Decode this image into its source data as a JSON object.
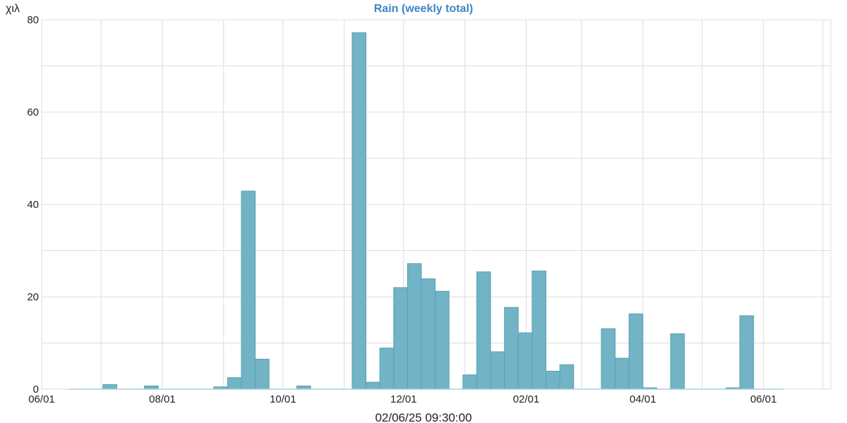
{
  "chart_data": {
    "type": "bar",
    "title": "Rain (weekly total)",
    "ylabel": "χιλ",
    "footer": "02/06/25 09:30:00",
    "ylim": [
      0,
      80
    ],
    "y_ticks": [
      0,
      20,
      40,
      60,
      80
    ],
    "x_tick_labels": [
      "06/01",
      "08/01",
      "10/01",
      "12/01",
      "02/01",
      "04/01",
      "06/01"
    ],
    "x_tick_dates": [
      "2024-06-01",
      "2024-08-01",
      "2024-10-01",
      "2024-12-01",
      "2025-02-01",
      "2025-04-01",
      "2025-06-01"
    ],
    "x_range": [
      "2024-06-01",
      "2025-07-05"
    ],
    "grid": true,
    "bar_color": "#72b3c6",
    "title_color": "#3d85c6",
    "week_start": [
      "2024-06-18",
      "2024-06-25",
      "2024-07-02",
      "2024-07-09",
      "2024-07-16",
      "2024-07-23",
      "2024-07-30",
      "2024-08-06",
      "2024-08-13",
      "2024-08-20",
      "2024-08-27",
      "2024-09-03",
      "2024-09-10",
      "2024-09-17",
      "2024-09-24",
      "2024-10-01",
      "2024-10-08",
      "2024-10-15",
      "2024-10-22",
      "2024-10-29",
      "2024-11-05",
      "2024-11-12",
      "2024-11-19",
      "2024-11-26",
      "2024-12-03",
      "2024-12-10",
      "2024-12-17",
      "2024-12-24",
      "2024-12-31",
      "2025-01-07",
      "2025-01-14",
      "2025-01-21",
      "2025-01-28",
      "2025-02-04",
      "2025-02-11",
      "2025-02-18",
      "2025-02-25",
      "2025-03-04",
      "2025-03-11",
      "2025-03-18",
      "2025-03-25",
      "2025-04-01",
      "2025-04-08",
      "2025-04-15",
      "2025-04-22",
      "2025-04-29",
      "2025-05-06",
      "2025-05-13",
      "2025-05-20",
      "2025-05-27",
      "2025-06-03"
    ],
    "values": [
      0,
      0,
      1.0,
      0,
      0,
      0.7,
      0,
      0,
      0,
      0,
      0.5,
      2.5,
      42.9,
      6.5,
      0,
      0,
      0.7,
      0,
      0,
      0,
      77.2,
      1.5,
      8.9,
      22.0,
      27.2,
      23.9,
      21.2,
      0,
      3.1,
      25.4,
      8.1,
      17.7,
      12.2,
      25.6,
      3.9,
      5.3,
      0,
      0,
      13.1,
      6.7,
      16.3,
      0.3,
      0,
      12.0,
      0,
      0,
      0,
      0.3,
      15.9,
      0,
      0
    ]
  }
}
